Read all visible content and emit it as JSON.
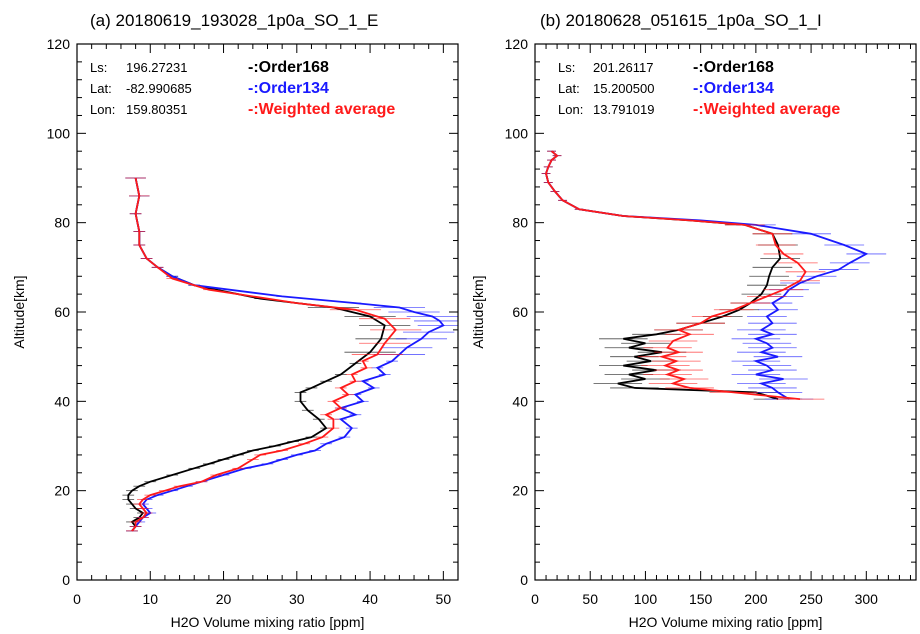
{
  "chart_data": [
    {
      "type": "line",
      "title": "(a)  20180619_193028_1p0a_SO_1_E",
      "xlabel": "H2O Volume mixing ratio [ppm]",
      "ylabel": "Altitude[km]",
      "xlim": [
        0,
        52
      ],
      "ylim": [
        0,
        120
      ],
      "xticks": [
        0,
        10,
        20,
        30,
        40,
        50
      ],
      "yticks": [
        0,
        20,
        40,
        60,
        80,
        100,
        120
      ],
      "info": [
        {
          "label": "Ls:",
          "value": "196.27231"
        },
        {
          "label": "Lat:",
          "value": "-82.990685"
        },
        {
          "label": "Lon:",
          "value": "159.80351"
        }
      ],
      "series": [
        {
          "name": "Order168",
          "legend_text": "-:Order168",
          "color": "#000000",
          "x": [
            7.5,
            8,
            7.5,
            8.5,
            9,
            8,
            7.5,
            7,
            7,
            7.5,
            8.5,
            10,
            13,
            16,
            18,
            20,
            22,
            24,
            27,
            29.5,
            32,
            34,
            33,
            31.5,
            30.5,
            30.5,
            32,
            34,
            36,
            38,
            40,
            41.5,
            42,
            40,
            35,
            25,
            16,
            13,
            11,
            9.5,
            8.5,
            8.5,
            8,
            8.5,
            8
          ],
          "y": [
            11,
            12,
            13,
            14,
            15,
            16,
            17,
            18,
            19,
            20,
            21,
            22,
            23.5,
            25,
            26,
            27,
            28,
            29,
            30,
            31,
            32,
            34,
            36,
            38,
            40,
            42,
            43,
            44.5,
            46,
            48.5,
            51,
            54,
            57,
            59,
            61,
            63,
            66,
            68,
            70,
            72,
            75,
            78,
            82,
            86,
            90
          ]
        },
        {
          "name": "Order134",
          "legend_text": "-:Order134",
          "color": "#1a1aff",
          "x": [
            7.5,
            8,
            8.5,
            9,
            10,
            9.5,
            9,
            9.5,
            11,
            13,
            15,
            17,
            20,
            23,
            26,
            28,
            30,
            32.5,
            34,
            36.5,
            37.5,
            36,
            38,
            36,
            39,
            38,
            40.5,
            39,
            42,
            41,
            43,
            44,
            45,
            47,
            48,
            50,
            49.5,
            48.5,
            46,
            44,
            38,
            28,
            16,
            13,
            11,
            9.5,
            8.5,
            8.5,
            8,
            8.5,
            8
          ],
          "y": [
            11,
            12,
            13,
            14,
            15,
            16,
            17,
            18,
            19,
            20,
            21,
            22,
            23.5,
            25,
            26,
            27,
            28,
            29,
            30.5,
            32,
            34,
            36,
            37,
            38.5,
            40,
            41.5,
            43,
            44.5,
            46,
            47.5,
            49,
            50.5,
            52,
            54,
            55.5,
            57,
            58,
            59,
            60,
            61,
            62,
            63.5,
            66,
            68,
            70,
            72,
            75,
            78,
            82,
            86,
            90
          ]
        },
        {
          "name": "Weighted average",
          "legend_text": "-:Weighted average",
          "color": "#ff1a1a",
          "x": [
            7.5,
            8,
            8,
            9,
            9.5,
            9,
            8.5,
            9,
            10,
            12,
            14,
            17,
            19,
            22,
            24,
            25,
            28,
            31,
            33.5,
            35,
            35,
            34,
            36,
            35,
            37,
            36,
            38,
            37.5,
            39.5,
            39,
            41,
            42,
            43.5,
            42,
            38,
            30,
            18,
            13,
            11,
            9.5,
            8.5,
            8.5,
            8,
            8.5,
            8
          ],
          "y": [
            11,
            12,
            13,
            14,
            15,
            16,
            17,
            18,
            19,
            20,
            21,
            22,
            23.5,
            25,
            27,
            28,
            29,
            30.5,
            32,
            34,
            36,
            37,
            38.5,
            40,
            41.5,
            43,
            44.5,
            46,
            47.5,
            49,
            50.5,
            53,
            56,
            58.5,
            60.5,
            62,
            65,
            67.5,
            70,
            72,
            75,
            78,
            82,
            86,
            90
          ]
        }
      ]
    },
    {
      "type": "line",
      "title": "(b)  20180628_051615_1p0a_SO_1_I",
      "xlabel": "H2O Volume mixing ratio [ppm]",
      "ylabel": "Altitude[km]",
      "xlim": [
        0,
        345
      ],
      "ylim": [
        0,
        120
      ],
      "xticks": [
        0,
        50,
        100,
        150,
        200,
        250,
        300
      ],
      "yticks": [
        0,
        20,
        40,
        60,
        80,
        100,
        120
      ],
      "info": [
        {
          "label": "Ls:",
          "value": "201.26117"
        },
        {
          "label": "Lat:",
          "value": "15.200500"
        },
        {
          "label": "Lon:",
          "value": "13.791019"
        }
      ],
      "series": [
        {
          "name": "Order168",
          "legend_text": "-:Order168",
          "color": "#000000",
          "x": [
            220,
            200,
            90,
            75,
            100,
            85,
            110,
            80,
            105,
            90,
            115,
            85,
            100,
            80,
            110,
            130,
            150,
            170,
            185,
            195,
            205,
            210,
            212,
            215,
            222,
            220,
            215,
            190,
            140,
            80,
            40,
            25,
            18,
            12,
            10,
            12,
            15,
            20,
            15
          ],
          "y": [
            40.5,
            42,
            43,
            44,
            45,
            46,
            47,
            48,
            49,
            50,
            51,
            52,
            53,
            54,
            55,
            56,
            57.5,
            59,
            60.5,
            62,
            64,
            66,
            68,
            70,
            72,
            75,
            77.5,
            79.5,
            80.5,
            81.5,
            83,
            85,
            87,
            89,
            91,
            92.5,
            94,
            95,
            96
          ]
        },
        {
          "name": "Order134",
          "legend_text": "-:Order134",
          "color": "#1a1aff",
          "x": [
            230,
            220,
            215,
            205,
            225,
            200,
            215,
            210,
            200,
            220,
            205,
            215,
            210,
            200,
            215,
            205,
            215,
            210,
            220,
            215,
            225,
            230,
            240,
            255,
            275,
            285,
            300,
            280,
            250,
            200,
            150,
            80,
            40,
            25,
            18,
            12,
            10,
            12,
            15,
            20,
            15
          ],
          "y": [
            40.5,
            42,
            43,
            44,
            45,
            46,
            47,
            48,
            49,
            50,
            51,
            52,
            53,
            54,
            55,
            56,
            57.5,
            59,
            60.5,
            62,
            63.5,
            65,
            66.5,
            68,
            69.5,
            71,
            73,
            75,
            77.5,
            79.5,
            80.5,
            81.5,
            83,
            85,
            87,
            89,
            91,
            92.5,
            94,
            95,
            96
          ]
        },
        {
          "name": "Weighted average",
          "legend_text": "-:Weighted average",
          "color": "#ff1a1a",
          "x": [
            240,
            180,
            140,
            125,
            135,
            120,
            130,
            118,
            128,
            115,
            130,
            120,
            125,
            140,
            130,
            150,
            160,
            180,
            195,
            210,
            225,
            240,
            245,
            238,
            225,
            218,
            215,
            190,
            140,
            80,
            40,
            25,
            18,
            12,
            10,
            12,
            15,
            20,
            15
          ],
          "y": [
            40.5,
            42,
            43,
            44,
            45,
            46,
            47,
            48,
            49,
            50,
            51,
            52,
            53.5,
            55,
            56,
            57.5,
            59,
            60.5,
            62,
            63.5,
            65,
            67,
            69,
            71,
            73,
            75,
            77.5,
            79.5,
            80.5,
            81.5,
            83,
            85,
            87,
            89,
            91,
            92.5,
            94,
            95,
            96
          ]
        }
      ]
    }
  ]
}
